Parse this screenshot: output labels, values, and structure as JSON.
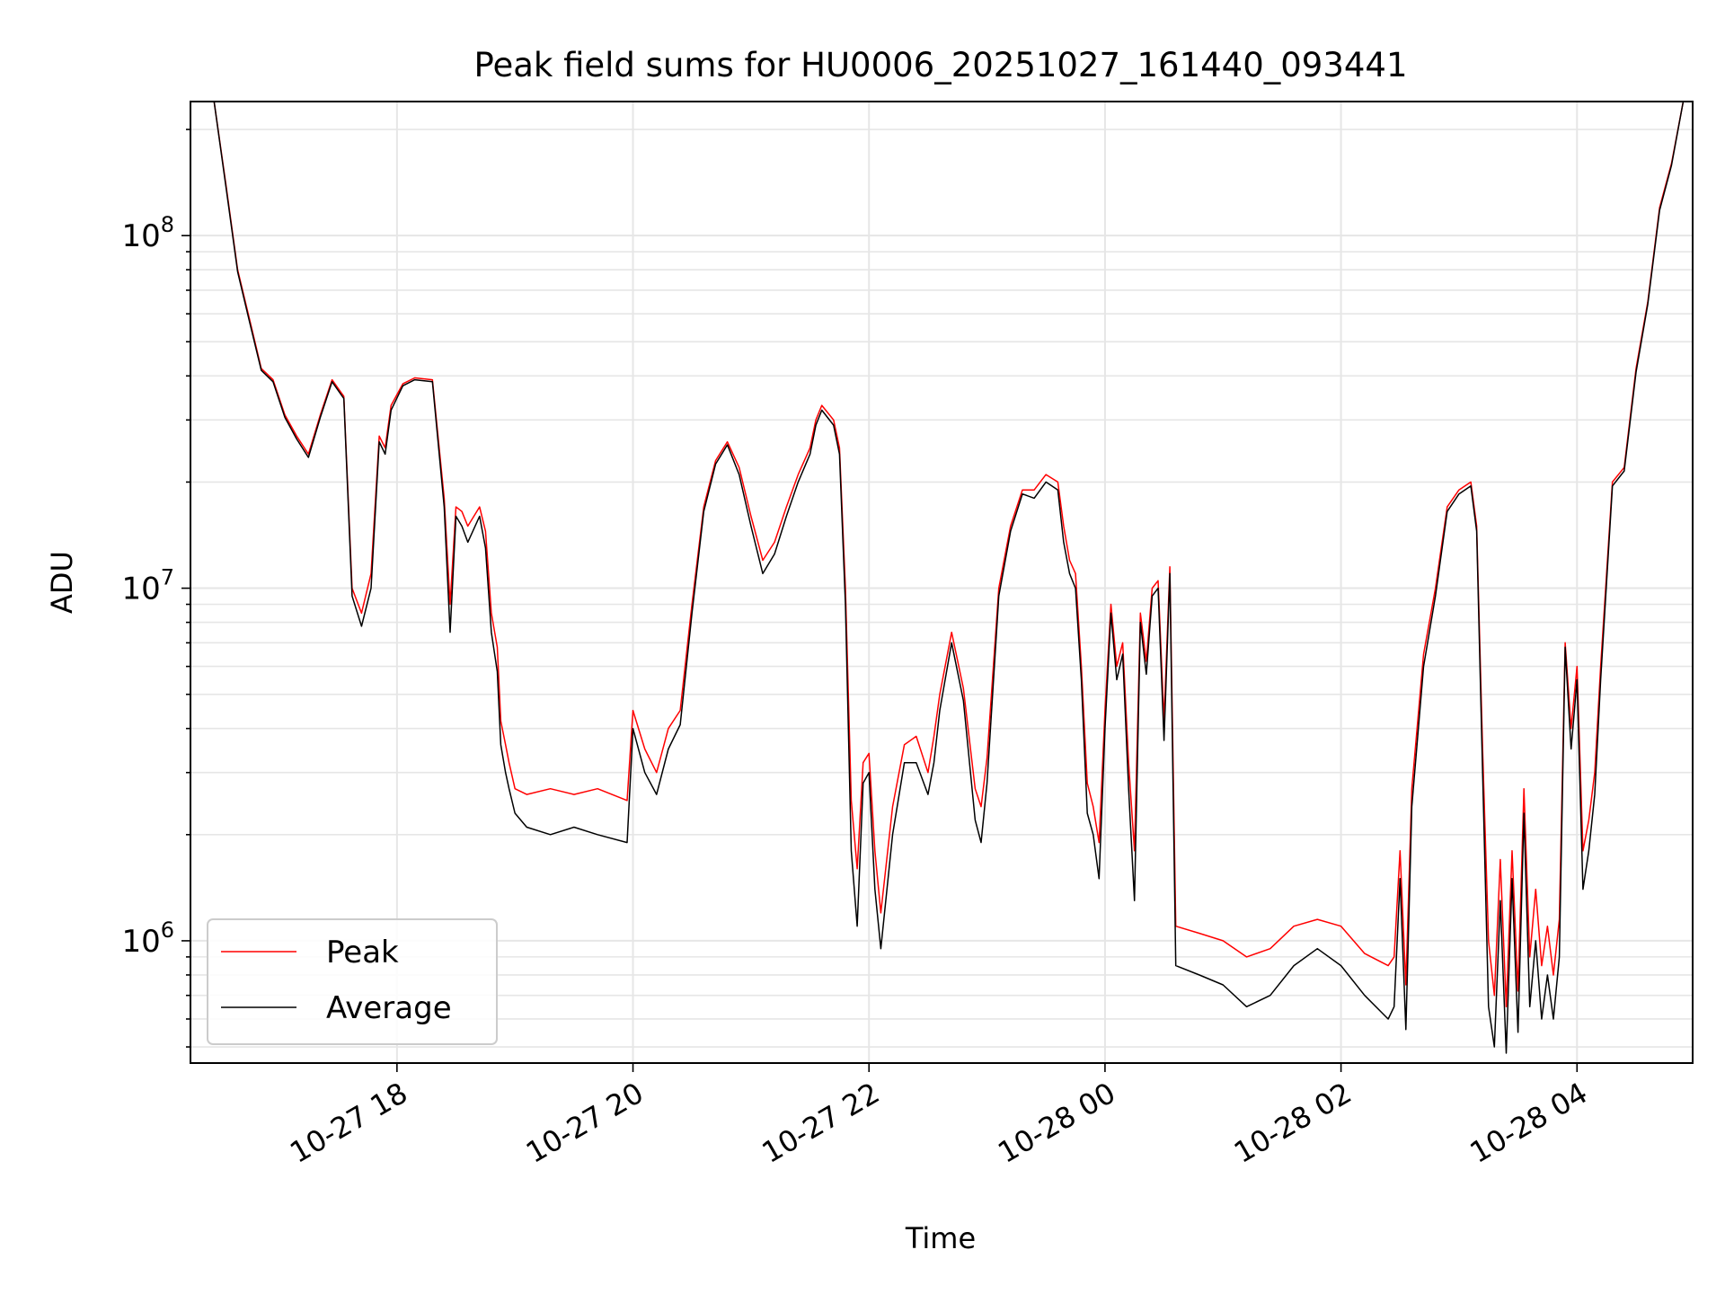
{
  "chart_data": {
    "type": "line",
    "title": "Peak field sums for HU0006_20251027_161440_093441",
    "xlabel": "Time",
    "ylabel": "ADU",
    "yscale": "log",
    "ylim": [
      450000,
      240000000
    ],
    "xlim_hours": [
      16.25,
      28.98
    ],
    "grid": true,
    "legend_position": "lower-left",
    "x_ticks": [
      {
        "hour": 18,
        "label": "10-27 18"
      },
      {
        "hour": 20,
        "label": "10-27 20"
      },
      {
        "hour": 22,
        "label": "10-27 22"
      },
      {
        "hour": 24,
        "label": "10-28 00"
      },
      {
        "hour": 26,
        "label": "10-28 02"
      },
      {
        "hour": 28,
        "label": "10-28 04"
      }
    ],
    "y_ticks": [
      {
        "value": 1000000,
        "base": "10",
        "exp": "6"
      },
      {
        "value": 10000000,
        "base": "10",
        "exp": "7"
      },
      {
        "value": 100000000,
        "base": "10",
        "exp": "8"
      }
    ],
    "series": [
      {
        "name": "Peak",
        "color": "#ff0000",
        "hours": [
          16.45,
          16.55,
          16.65,
          16.75,
          16.85,
          16.95,
          17.05,
          17.15,
          17.25,
          17.35,
          17.45,
          17.55,
          17.62,
          17.7,
          17.78,
          17.85,
          17.9,
          17.95,
          18.05,
          18.15,
          18.3,
          18.4,
          18.45,
          18.5,
          18.55,
          18.6,
          18.7,
          18.75,
          18.8,
          18.85,
          18.88,
          18.92,
          18.95,
          19.0,
          19.1,
          19.3,
          19.5,
          19.7,
          19.95,
          20.0,
          20.1,
          20.2,
          20.3,
          20.4,
          20.5,
          20.6,
          20.7,
          20.8,
          20.9,
          21.0,
          21.1,
          21.2,
          21.3,
          21.4,
          21.5,
          21.55,
          21.6,
          21.7,
          21.75,
          21.8,
          21.85,
          21.9,
          21.95,
          22.0,
          22.05,
          22.1,
          22.2,
          22.3,
          22.4,
          22.5,
          22.55,
          22.6,
          22.7,
          22.8,
          22.9,
          22.95,
          23.0,
          23.1,
          23.2,
          23.3,
          23.4,
          23.5,
          23.6,
          23.65,
          23.7,
          23.75,
          23.8,
          23.85,
          23.9,
          23.95,
          24.0,
          24.05,
          24.1,
          24.15,
          24.2,
          24.25,
          24.3,
          24.35,
          24.4,
          24.45,
          24.5,
          24.55,
          24.6,
          24.8,
          25.0,
          25.2,
          25.4,
          25.6,
          25.8,
          26.0,
          26.2,
          26.4,
          26.45,
          26.5,
          26.55,
          26.6,
          26.7,
          26.8,
          26.9,
          27.0,
          27.1,
          27.15,
          27.2,
          27.25,
          27.3,
          27.35,
          27.4,
          27.45,
          27.5,
          27.55,
          27.6,
          27.65,
          27.7,
          27.75,
          27.8,
          27.85,
          27.9,
          27.95,
          28.0,
          28.05,
          28.1,
          28.15,
          28.2,
          28.3,
          28.4,
          28.5,
          28.6,
          28.7,
          28.8,
          28.9
        ],
        "values": [
          240000000,
          140000000,
          80000000,
          58000000,
          42000000,
          39000000,
          31000000,
          27000000,
          24000000,
          31000000,
          39000000,
          35000000,
          10000000,
          8500000,
          11000000,
          27000000,
          25000000,
          33000000,
          38000000,
          39500000,
          39000000,
          18000000,
          9000000,
          17000000,
          16500000,
          15000000,
          17000000,
          14500000,
          8500000,
          6800000,
          4200000,
          3600000,
          3200000,
          2700000,
          2600000,
          2700000,
          2600000,
          2700000,
          2500000,
          4500000,
          3500000,
          3000000,
          4000000,
          4500000,
          9000000,
          17000000,
          23000000,
          26000000,
          22000000,
          16000000,
          12000000,
          13500000,
          17000000,
          21000000,
          25000000,
          30000000,
          33000000,
          30000000,
          25000000,
          10000000,
          2500000,
          1600000,
          3200000,
          3400000,
          1800000,
          1200000,
          2400000,
          3600000,
          3800000,
          3000000,
          3800000,
          5000000,
          7500000,
          5200000,
          2700000,
          2400000,
          3300000,
          10000000,
          15000000,
          19000000,
          19000000,
          21000000,
          20000000,
          15000000,
          12000000,
          11000000,
          6000000,
          2800000,
          2400000,
          1900000,
          4500000,
          9000000,
          6000000,
          7000000,
          3200000,
          1800000,
          8500000,
          6200000,
          10000000,
          10500000,
          4200000,
          11500000,
          1100000,
          1050000,
          1000000,
          900000,
          950000,
          1100000,
          1150000,
          1100000,
          920000,
          850000,
          900000,
          1800000,
          750000,
          2700000,
          6500000,
          10000000,
          17000000,
          19000000,
          20000000,
          15000000,
          3500000,
          1000000,
          700000,
          1700000,
          650000,
          1800000,
          720000,
          2700000,
          900000,
          1400000,
          850000,
          1100000,
          800000,
          1150000,
          7000000,
          4000000,
          6000000,
          1800000,
          2200000,
          3000000,
          6000000,
          20000000,
          22000000,
          42000000,
          65000000,
          120000000,
          160000000,
          240000000
        ]
      },
      {
        "name": "Average",
        "color": "#000000",
        "hours": [
          16.45,
          16.55,
          16.65,
          16.75,
          16.85,
          16.95,
          17.05,
          17.15,
          17.25,
          17.35,
          17.45,
          17.55,
          17.62,
          17.7,
          17.78,
          17.85,
          17.9,
          17.95,
          18.05,
          18.15,
          18.3,
          18.4,
          18.45,
          18.5,
          18.55,
          18.6,
          18.7,
          18.75,
          18.8,
          18.85,
          18.88,
          18.92,
          18.95,
          19.0,
          19.1,
          19.3,
          19.5,
          19.7,
          19.95,
          20.0,
          20.1,
          20.2,
          20.3,
          20.4,
          20.5,
          20.6,
          20.7,
          20.8,
          20.9,
          21.0,
          21.1,
          21.2,
          21.3,
          21.4,
          21.5,
          21.55,
          21.6,
          21.7,
          21.75,
          21.8,
          21.85,
          21.9,
          21.95,
          22.0,
          22.05,
          22.1,
          22.2,
          22.3,
          22.4,
          22.5,
          22.55,
          22.6,
          22.7,
          22.8,
          22.9,
          22.95,
          23.0,
          23.1,
          23.2,
          23.3,
          23.4,
          23.5,
          23.6,
          23.65,
          23.7,
          23.75,
          23.8,
          23.85,
          23.9,
          23.95,
          24.0,
          24.05,
          24.1,
          24.15,
          24.2,
          24.25,
          24.3,
          24.35,
          24.4,
          24.45,
          24.5,
          24.55,
          24.6,
          24.8,
          25.0,
          25.2,
          25.4,
          25.6,
          25.8,
          26.0,
          26.2,
          26.4,
          26.45,
          26.5,
          26.55,
          26.6,
          26.7,
          26.8,
          26.9,
          27.0,
          27.1,
          27.15,
          27.2,
          27.25,
          27.3,
          27.35,
          27.4,
          27.45,
          27.5,
          27.55,
          27.6,
          27.65,
          27.7,
          27.75,
          27.8,
          27.85,
          27.9,
          27.95,
          28.0,
          28.05,
          28.1,
          28.15,
          28.2,
          28.3,
          28.4,
          28.5,
          28.6,
          28.7,
          28.8,
          28.9
        ],
        "values": [
          240000000,
          138000000,
          79000000,
          57000000,
          41500000,
          38500000,
          30500000,
          26500000,
          23500000,
          30500000,
          38500000,
          34500000,
          9500000,
          7800000,
          10000000,
          26000000,
          24000000,
          32000000,
          37500000,
          39000000,
          38500000,
          17000000,
          7500000,
          16000000,
          15000000,
          13500000,
          16000000,
          13000000,
          7500000,
          5800000,
          3600000,
          3000000,
          2700000,
          2300000,
          2100000,
          2000000,
          2100000,
          2000000,
          1900000,
          4000000,
          3000000,
          2600000,
          3500000,
          4100000,
          8500000,
          16500000,
          22500000,
          25500000,
          21000000,
          15000000,
          11000000,
          12500000,
          16000000,
          20000000,
          24000000,
          29000000,
          32000000,
          29000000,
          24000000,
          9000000,
          1800000,
          1100000,
          2800000,
          3000000,
          1400000,
          950000,
          2000000,
          3200000,
          3200000,
          2600000,
          3200000,
          4500000,
          7000000,
          4800000,
          2200000,
          1900000,
          2800000,
          9500000,
          14500000,
          18500000,
          18000000,
          20000000,
          19000000,
          13500000,
          11000000,
          10000000,
          5500000,
          2300000,
          2000000,
          1500000,
          4000000,
          8500000,
          5500000,
          6500000,
          2700000,
          1300000,
          8000000,
          5700000,
          9500000,
          10000000,
          3700000,
          11000000,
          850000,
          800000,
          750000,
          650000,
          700000,
          850000,
          950000,
          850000,
          700000,
          600000,
          650000,
          1500000,
          560000,
          2400000,
          6000000,
          9500000,
          16500000,
          18500000,
          19500000,
          14500000,
          3000000,
          650000,
          500000,
          1300000,
          480000,
          1500000,
          550000,
          2300000,
          650000,
          1000000,
          600000,
          800000,
          600000,
          900000,
          6800000,
          3500000,
          5500000,
          1400000,
          1800000,
          2600000,
          5500000,
          19500000,
          21500000,
          41000000,
          64000000,
          118000000,
          158000000,
          240000000
        ]
      }
    ]
  }
}
